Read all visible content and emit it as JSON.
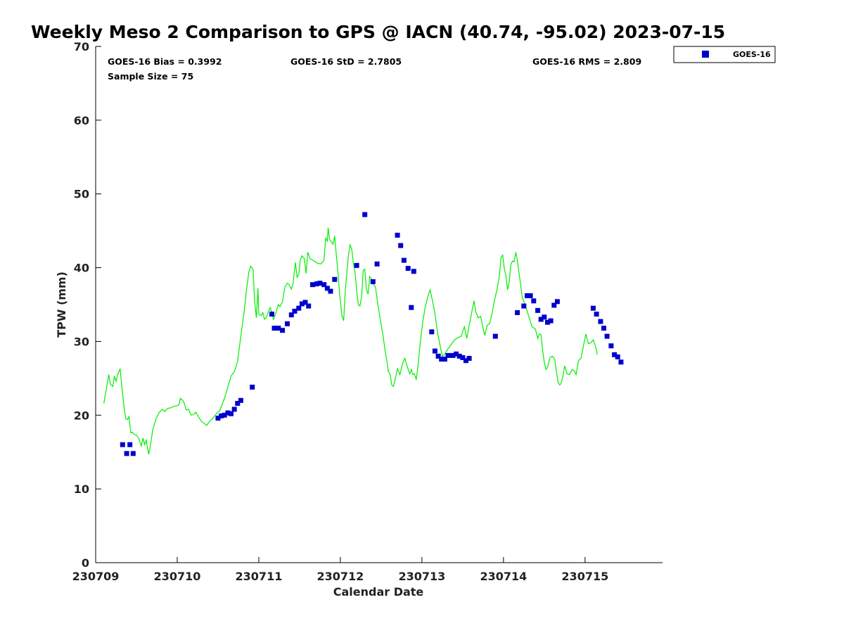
{
  "colors": {
    "gps_line": "#00ee00",
    "goes_marker": "#0000cc",
    "axis": "#000000"
  },
  "chart_data": {
    "type": "scatter",
    "title": "Weekly Meso 2 Comparison to GPS @ IACN (40.74, -95.02) 2023-07-15",
    "xlabel": "Calendar Date",
    "ylabel": "TPW (mm)",
    "xlim": [
      0,
      6.95
    ],
    "ylim": [
      0,
      70
    ],
    "x_ticks": [
      0,
      1,
      2,
      3,
      4,
      5,
      6
    ],
    "x_tick_labels": [
      "230709",
      "230710",
      "230711",
      "230712",
      "230713",
      "230714",
      "230715"
    ],
    "y_ticks": [
      0,
      10,
      20,
      30,
      40,
      50,
      60,
      70
    ],
    "y_tick_labels": [
      "0",
      "10",
      "20",
      "30",
      "40",
      "50",
      "60",
      "70"
    ],
    "stats": {
      "bias": "GOES-16 Bias = 0.3992",
      "std": "GOES-16 StD = 2.7805",
      "rms": "GOES-16 RMS = 2.809",
      "sample": "Sample Size = 75"
    },
    "legend": {
      "label": "GOES-16",
      "position": "top-right"
    },
    "series": [
      {
        "name": "GPS",
        "style": "line",
        "points": [
          [
            0.1,
            21.6
          ],
          [
            0.13,
            23.5
          ],
          [
            0.16,
            25.5
          ],
          [
            0.18,
            24.2
          ],
          [
            0.21,
            23.9
          ],
          [
            0.23,
            25.3
          ],
          [
            0.25,
            24.6
          ],
          [
            0.27,
            25.5
          ],
          [
            0.3,
            26.3
          ],
          [
            0.32,
            24.0
          ],
          [
            0.35,
            20.9
          ],
          [
            0.37,
            19.5
          ],
          [
            0.39,
            19.4
          ],
          [
            0.41,
            19.8
          ],
          [
            0.43,
            17.6
          ],
          [
            0.45,
            17.7
          ],
          [
            0.47,
            17.4
          ],
          [
            0.5,
            17.3
          ],
          [
            0.53,
            16.8
          ],
          [
            0.56,
            15.8
          ],
          [
            0.58,
            16.9
          ],
          [
            0.6,
            16.0
          ],
          [
            0.62,
            16.6
          ],
          [
            0.64,
            15.3
          ],
          [
            0.65,
            14.7
          ],
          [
            0.67,
            15.8
          ],
          [
            0.7,
            18.0
          ],
          [
            0.74,
            19.5
          ],
          [
            0.78,
            20.4
          ],
          [
            0.82,
            20.8
          ],
          [
            0.85,
            20.5
          ],
          [
            0.88,
            20.9
          ],
          [
            0.92,
            21.0
          ],
          [
            0.96,
            21.2
          ],
          [
            1.0,
            21.3
          ],
          [
            1.02,
            21.4
          ],
          [
            1.04,
            22.3
          ],
          [
            1.07,
            22.0
          ],
          [
            1.09,
            21.5
          ],
          [
            1.11,
            20.7
          ],
          [
            1.14,
            20.8
          ],
          [
            1.17,
            20.0
          ],
          [
            1.2,
            20.1
          ],
          [
            1.23,
            20.4
          ],
          [
            1.26,
            19.8
          ],
          [
            1.3,
            19.1
          ],
          [
            1.33,
            18.9
          ],
          [
            1.36,
            18.6
          ],
          [
            1.4,
            19.2
          ],
          [
            1.44,
            19.6
          ],
          [
            1.48,
            20.2
          ],
          [
            1.52,
            20.6
          ],
          [
            1.55,
            21.4
          ],
          [
            1.58,
            22.3
          ],
          [
            1.62,
            23.8
          ],
          [
            1.66,
            25.3
          ],
          [
            1.7,
            25.9
          ],
          [
            1.74,
            27.3
          ],
          [
            1.78,
            30.7
          ],
          [
            1.82,
            34.0
          ],
          [
            1.85,
            37.0
          ],
          [
            1.88,
            39.5
          ],
          [
            1.9,
            40.2
          ],
          [
            1.93,
            39.8
          ],
          [
            1.95,
            35.4
          ],
          [
            1.97,
            33.2
          ],
          [
            1.99,
            37.2
          ],
          [
            2.0,
            33.7
          ],
          [
            2.03,
            33.5
          ],
          [
            2.05,
            33.9
          ],
          [
            2.07,
            33.0
          ],
          [
            2.09,
            33.2
          ],
          [
            2.12,
            34.1
          ],
          [
            2.14,
            34.6
          ],
          [
            2.16,
            33.9
          ],
          [
            2.18,
            33.0
          ],
          [
            2.2,
            33.5
          ],
          [
            2.22,
            34.3
          ],
          [
            2.24,
            35.0
          ],
          [
            2.26,
            34.7
          ],
          [
            2.29,
            35.4
          ],
          [
            2.32,
            37.4
          ],
          [
            2.35,
            37.9
          ],
          [
            2.37,
            37.7
          ],
          [
            2.4,
            37.1
          ],
          [
            2.42,
            37.9
          ],
          [
            2.45,
            40.7
          ],
          [
            2.47,
            38.7
          ],
          [
            2.49,
            39.1
          ],
          [
            2.51,
            41.1
          ],
          [
            2.53,
            41.6
          ],
          [
            2.56,
            41.2
          ],
          [
            2.58,
            39.2
          ],
          [
            2.6,
            42.1
          ],
          [
            2.63,
            41.2
          ],
          [
            2.68,
            40.9
          ],
          [
            2.72,
            40.6
          ],
          [
            2.76,
            40.5
          ],
          [
            2.8,
            41.0
          ],
          [
            2.82,
            44.0
          ],
          [
            2.84,
            43.6
          ],
          [
            2.85,
            45.4
          ],
          [
            2.87,
            43.8
          ],
          [
            2.89,
            43.5
          ],
          [
            2.91,
            43.2
          ],
          [
            2.93,
            44.3
          ],
          [
            2.95,
            41.8
          ],
          [
            2.97,
            39.5
          ],
          [
            2.99,
            36.5
          ],
          [
            3.02,
            33.5
          ],
          [
            3.04,
            32.8
          ],
          [
            3.06,
            36.8
          ],
          [
            3.08,
            39.4
          ],
          [
            3.1,
            41.7
          ],
          [
            3.12,
            43.1
          ],
          [
            3.14,
            42.5
          ],
          [
            3.16,
            40.6
          ],
          [
            3.18,
            39.4
          ],
          [
            3.2,
            36.9
          ],
          [
            3.22,
            35.0
          ],
          [
            3.24,
            34.8
          ],
          [
            3.26,
            36.0
          ],
          [
            3.28,
            39.6
          ],
          [
            3.3,
            39.8
          ],
          [
            3.32,
            37.0
          ],
          [
            3.34,
            36.4
          ],
          [
            3.36,
            38.8
          ],
          [
            3.38,
            38.5
          ],
          [
            3.4,
            37.8
          ],
          [
            3.43,
            37.4
          ],
          [
            3.46,
            35.0
          ],
          [
            3.49,
            33.0
          ],
          [
            3.52,
            31.0
          ],
          [
            3.55,
            28.7
          ],
          [
            3.57,
            27.4
          ],
          [
            3.59,
            25.9
          ],
          [
            3.61,
            25.5
          ],
          [
            3.63,
            24.1
          ],
          [
            3.65,
            23.9
          ],
          [
            3.67,
            24.8
          ],
          [
            3.7,
            26.3
          ],
          [
            3.73,
            25.5
          ],
          [
            3.76,
            26.9
          ],
          [
            3.79,
            27.7
          ],
          [
            3.82,
            26.6
          ],
          [
            3.85,
            25.6
          ],
          [
            3.87,
            26.2
          ],
          [
            3.89,
            25.5
          ],
          [
            3.91,
            25.6
          ],
          [
            3.93,
            24.8
          ],
          [
            3.95,
            26.5
          ],
          [
            3.98,
            29.9
          ],
          [
            4.01,
            32.6
          ],
          [
            4.04,
            34.6
          ],
          [
            4.07,
            36.0
          ],
          [
            4.1,
            37.0
          ],
          [
            4.13,
            35.5
          ],
          [
            4.16,
            33.8
          ],
          [
            4.19,
            31.3
          ],
          [
            4.22,
            29.6
          ],
          [
            4.25,
            28.0
          ],
          [
            4.28,
            28.3
          ],
          [
            4.32,
            29.0
          ],
          [
            4.36,
            29.6
          ],
          [
            4.4,
            30.2
          ],
          [
            4.44,
            30.5
          ],
          [
            4.48,
            30.7
          ],
          [
            4.52,
            32.0
          ],
          [
            4.55,
            30.4
          ],
          [
            4.58,
            32.2
          ],
          [
            4.62,
            34.5
          ],
          [
            4.64,
            35.5
          ],
          [
            4.66,
            34.0
          ],
          [
            4.69,
            33.2
          ],
          [
            4.72,
            33.4
          ],
          [
            4.75,
            31.8
          ],
          [
            4.77,
            30.8
          ],
          [
            4.8,
            32.2
          ],
          [
            4.83,
            32.4
          ],
          [
            4.86,
            33.8
          ],
          [
            4.89,
            35.6
          ],
          [
            4.92,
            37.0
          ],
          [
            4.95,
            38.9
          ],
          [
            4.97,
            41.4
          ],
          [
            4.99,
            41.7
          ],
          [
            5.01,
            39.9
          ],
          [
            5.03,
            38.9
          ],
          [
            5.05,
            37.0
          ],
          [
            5.07,
            38.1
          ],
          [
            5.09,
            40.4
          ],
          [
            5.11,
            40.9
          ],
          [
            5.13,
            40.8
          ],
          [
            5.15,
            42.1
          ],
          [
            5.17,
            41.0
          ],
          [
            5.2,
            38.5
          ],
          [
            5.23,
            36.0
          ],
          [
            5.27,
            34.8
          ],
          [
            5.31,
            33.4
          ],
          [
            5.35,
            32.0
          ],
          [
            5.39,
            31.7
          ],
          [
            5.42,
            30.4
          ],
          [
            5.44,
            31.0
          ],
          [
            5.46,
            30.9
          ],
          [
            5.48,
            28.8
          ],
          [
            5.5,
            27.2
          ],
          [
            5.52,
            26.2
          ],
          [
            5.54,
            26.5
          ],
          [
            5.57,
            27.8
          ],
          [
            5.6,
            28.0
          ],
          [
            5.63,
            27.5
          ],
          [
            5.65,
            25.8
          ],
          [
            5.67,
            24.4
          ],
          [
            5.69,
            24.1
          ],
          [
            5.71,
            24.4
          ],
          [
            5.73,
            25.4
          ],
          [
            5.75,
            26.7
          ],
          [
            5.78,
            25.6
          ],
          [
            5.81,
            25.5
          ],
          [
            5.84,
            26.2
          ],
          [
            5.87,
            26.0
          ],
          [
            5.89,
            25.5
          ],
          [
            5.92,
            27.4
          ],
          [
            5.95,
            27.7
          ],
          [
            5.98,
            29.4
          ],
          [
            6.01,
            31.0
          ],
          [
            6.04,
            29.7
          ],
          [
            6.07,
            29.8
          ],
          [
            6.1,
            30.2
          ],
          [
            6.13,
            29.3
          ],
          [
            6.15,
            28.2
          ]
        ]
      },
      {
        "name": "GOES-16",
        "style": "marker",
        "points": [
          [
            0.33,
            16.0
          ],
          [
            0.38,
            14.8
          ],
          [
            0.42,
            16.0
          ],
          [
            0.46,
            14.8
          ],
          [
            1.5,
            19.6
          ],
          [
            1.54,
            19.9
          ],
          [
            1.58,
            20.0
          ],
          [
            1.62,
            20.3
          ],
          [
            1.66,
            20.2
          ],
          [
            1.7,
            20.8
          ],
          [
            1.74,
            21.6
          ],
          [
            1.78,
            22.0
          ],
          [
            1.92,
            23.8
          ],
          [
            2.16,
            33.7
          ],
          [
            2.19,
            31.8
          ],
          [
            2.24,
            31.8
          ],
          [
            2.29,
            31.5
          ],
          [
            2.35,
            32.4
          ],
          [
            2.4,
            33.6
          ],
          [
            2.44,
            34.1
          ],
          [
            2.49,
            34.5
          ],
          [
            2.53,
            35.1
          ],
          [
            2.57,
            35.3
          ],
          [
            2.61,
            34.8
          ],
          [
            2.66,
            37.7
          ],
          [
            2.71,
            37.8
          ],
          [
            2.75,
            37.9
          ],
          [
            2.8,
            37.7
          ],
          [
            2.84,
            37.2
          ],
          [
            2.88,
            36.8
          ],
          [
            2.93,
            38.4
          ],
          [
            3.2,
            40.3
          ],
          [
            3.3,
            47.2
          ],
          [
            3.4,
            38.1
          ],
          [
            3.45,
            40.5
          ],
          [
            3.7,
            44.4
          ],
          [
            3.74,
            43.0
          ],
          [
            3.78,
            41.0
          ],
          [
            3.83,
            39.9
          ],
          [
            3.87,
            34.6
          ],
          [
            3.9,
            39.5
          ],
          [
            4.12,
            31.3
          ],
          [
            4.16,
            28.7
          ],
          [
            4.2,
            28.0
          ],
          [
            4.24,
            27.6
          ],
          [
            4.28,
            27.6
          ],
          [
            4.32,
            28.1
          ],
          [
            4.38,
            28.1
          ],
          [
            4.42,
            28.3
          ],
          [
            4.46,
            28.0
          ],
          [
            4.5,
            27.8
          ],
          [
            4.54,
            27.4
          ],
          [
            4.58,
            27.7
          ],
          [
            4.9,
            30.7
          ],
          [
            5.17,
            33.9
          ],
          [
            5.25,
            34.8
          ],
          [
            5.29,
            36.2
          ],
          [
            5.33,
            36.2
          ],
          [
            5.37,
            35.5
          ],
          [
            5.42,
            34.2
          ],
          [
            5.46,
            33.0
          ],
          [
            5.5,
            33.3
          ],
          [
            5.54,
            32.6
          ],
          [
            5.58,
            32.8
          ],
          [
            5.62,
            34.9
          ],
          [
            5.66,
            35.4
          ],
          [
            6.1,
            34.5
          ],
          [
            6.14,
            33.7
          ],
          [
            6.19,
            32.7
          ],
          [
            6.23,
            31.8
          ],
          [
            6.27,
            30.7
          ],
          [
            6.32,
            29.4
          ],
          [
            6.36,
            28.2
          ],
          [
            6.4,
            27.9
          ],
          [
            6.44,
            27.2
          ]
        ]
      }
    ]
  }
}
